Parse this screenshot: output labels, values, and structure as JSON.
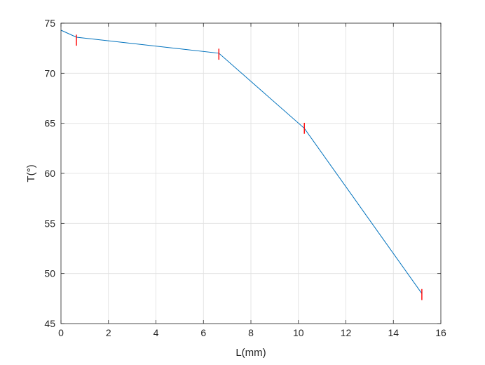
{
  "chart_data": {
    "type": "line",
    "title": "",
    "xlabel": "L(mm)",
    "ylabel": "T(°)",
    "xlim": [
      0,
      16
    ],
    "ylim": [
      45,
      75
    ],
    "xticks": [
      0,
      2,
      4,
      6,
      8,
      10,
      12,
      14,
      16
    ],
    "yticks": [
      45,
      50,
      55,
      60,
      65,
      70,
      75
    ],
    "grid": true,
    "legend": "none",
    "series": [
      {
        "color": "#0072BD",
        "x": [
          0,
          0.65,
          6.65,
          10.25,
          15.2
        ],
        "y": [
          74.3,
          73.6,
          72.0,
          64.5,
          48.0
        ]
      }
    ],
    "markers": {
      "shape": "vertical-bar",
      "color": "#FF0000",
      "x": [
        0.65,
        6.65,
        10.25,
        15.2
      ],
      "y": [
        73.3,
        71.9,
        64.5,
        47.9
      ],
      "half_height": 0.55
    }
  }
}
